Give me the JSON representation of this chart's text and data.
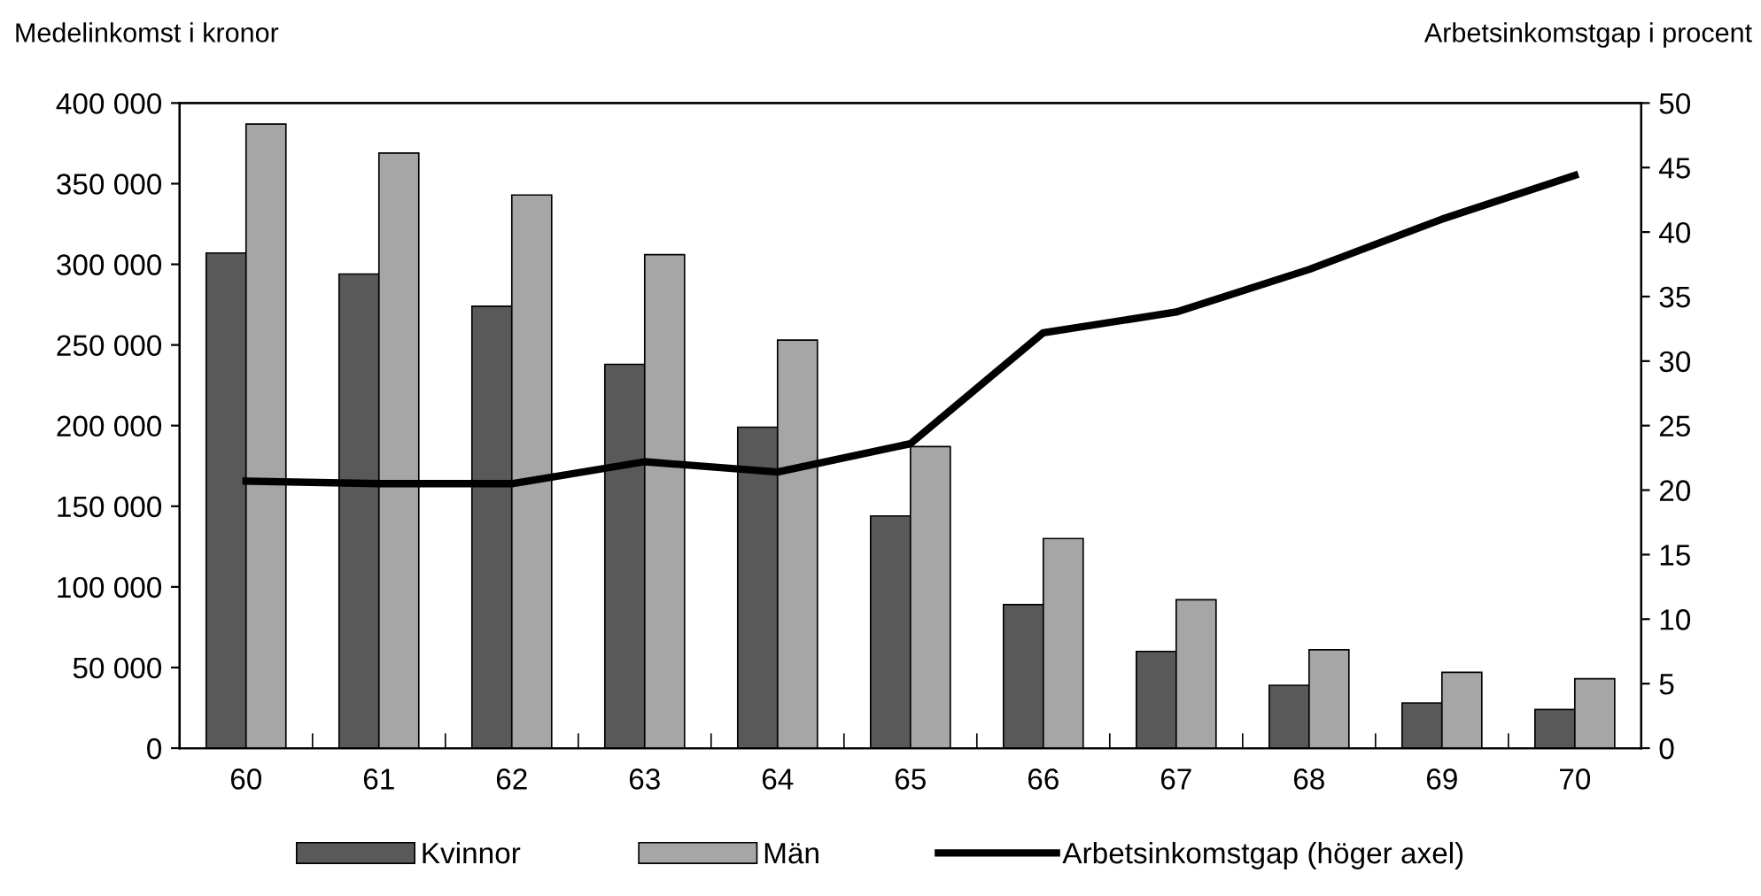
{
  "chart_data": {
    "type": "bar",
    "ylabel": "Medelinkomst i kronor",
    "y2label": "Arbetsinkomstgap i procent",
    "categories": [
      "60",
      "61",
      "62",
      "63",
      "64",
      "65",
      "66",
      "67",
      "68",
      "69",
      "70"
    ],
    "series": [
      {
        "name": "Kvinnor",
        "color": "#595959",
        "values": [
          307000,
          294000,
          274000,
          238000,
          199000,
          144000,
          89000,
          60000,
          39000,
          28000,
          24000
        ]
      },
      {
        "name": "Män",
        "color": "#a6a6a6",
        "values": [
          387000,
          369000,
          343000,
          306000,
          253000,
          187000,
          130000,
          92000,
          61000,
          47000,
          43000
        ]
      },
      {
        "name": "Arbetsinkomstgap (höger axel)",
        "type": "line",
        "axis": "y2",
        "color": "#000000",
        "values": [
          20.7,
          20.5,
          20.5,
          22.2,
          21.4,
          23.6,
          32.2,
          33.8,
          37.1,
          41.0,
          44.4
        ]
      }
    ],
    "ylim": [
      0,
      400000
    ],
    "yticks": [
      0,
      {
        "value": 50000,
        "label": "50 000"
      },
      {
        "value": 100000,
        "label": "100 000"
      },
      {
        "value": 150000,
        "label": "150 000"
      },
      {
        "value": 200000,
        "label": "200 000"
      },
      {
        "value": 250000,
        "label": "250 000"
      },
      {
        "value": 300000,
        "label": "300 000"
      },
      {
        "value": 350000,
        "label": "350 000"
      },
      {
        "value": 400000,
        "label": "400 000"
      }
    ],
    "y2lim": [
      0,
      50
    ],
    "y2ticks": [
      0,
      5,
      10,
      15,
      20,
      25,
      30,
      35,
      40,
      45,
      50
    ],
    "grid": false,
    "legend": "bottom",
    "marker": "none",
    "line_style": "solid"
  }
}
